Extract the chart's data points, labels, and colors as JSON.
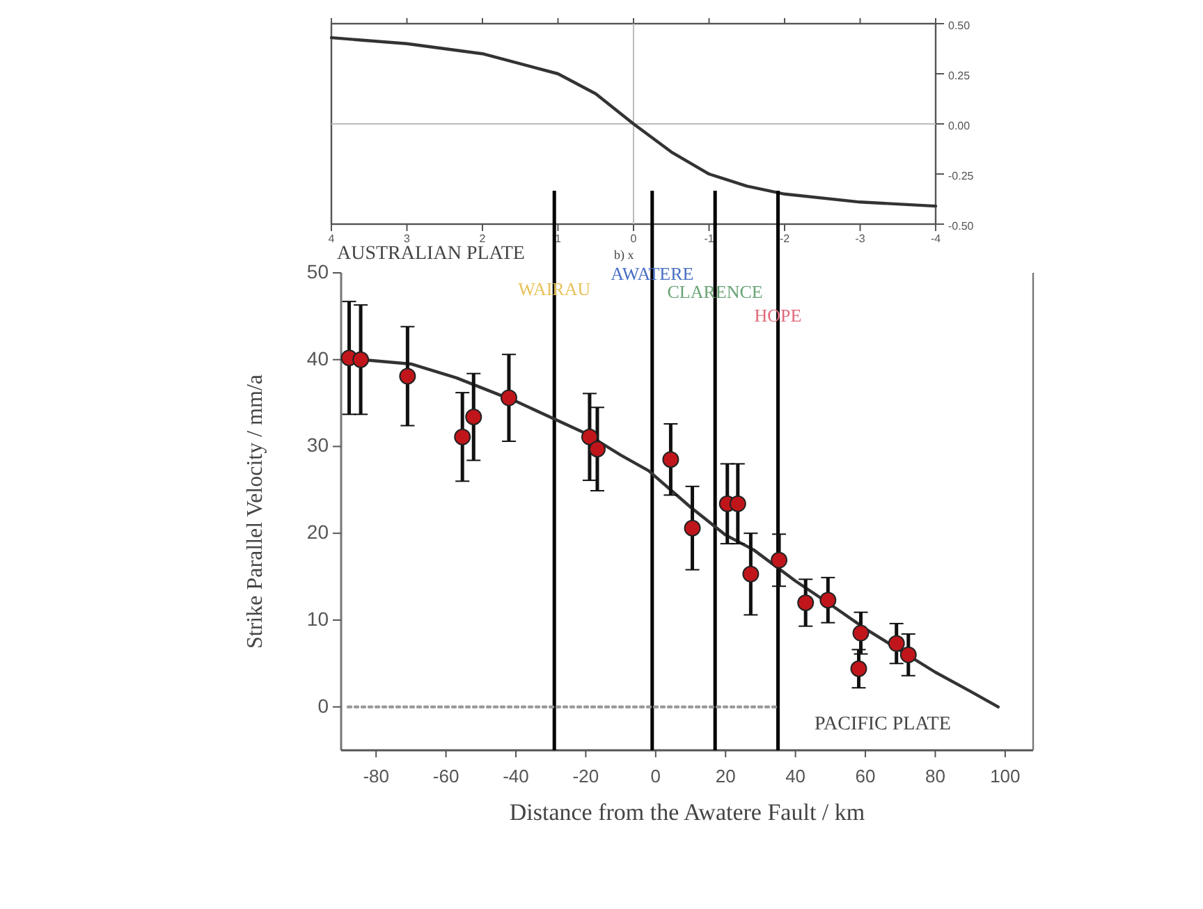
{
  "chart_data": [
    {
      "type": "line",
      "xlim": [
        4,
        -4
      ],
      "xticks": [
        4,
        3,
        2,
        1,
        0,
        -1,
        -2,
        -3,
        -4
      ],
      "y2lim": [
        -0.5,
        0.5
      ],
      "y2ticks": [
        {
          "value": 0.5,
          "label": "0.50"
        },
        {
          "value": 0.25,
          "label": "0.25"
        },
        {
          "value": 0,
          "label": "0.00"
        },
        {
          "value": -0.25,
          "label": "-0.25"
        },
        {
          "value": -0.5,
          "label": "-0.50"
        }
      ],
      "ref_lines": [
        {
          "axis": "x",
          "value": 0,
          "color": "#bbbbbb"
        },
        {
          "axis": "y2",
          "value": 0,
          "color": "#bbbbbb"
        }
      ],
      "series": [
        {
          "axis": "y2",
          "color": "#333333",
          "x": [
            4,
            3,
            2,
            1,
            0.5,
            0,
            -0.5,
            -1,
            -1.5,
            -2,
            -3,
            -4
          ],
          "values": [
            0.43,
            0.4,
            0.35,
            0.25,
            0.15,
            0,
            -0.14,
            -0.25,
            -0.31,
            -0.35,
            -0.39,
            -0.41
          ]
        }
      ]
    },
    {
      "type": "scatter",
      "xlabel": "Distance from the Awatere Fault /  km",
      "ylabel": "Strike Parallel Velocity  /  mm/a",
      "xlim": [
        -90,
        108
      ],
      "ylim": [
        -5,
        50
      ],
      "xticks": [
        -80,
        -60,
        -40,
        -20,
        0,
        20,
        40,
        60,
        80,
        100
      ],
      "yticks": [
        0,
        10,
        20,
        30,
        40,
        50
      ],
      "annotations": [
        "AUSTRALIAN PLATE",
        "PACIFIC PLATE",
        "b) x"
      ],
      "ref_lines": [
        {
          "axis": "x",
          "value": -29,
          "label": "WAIRAU",
          "color": "#000000"
        },
        {
          "axis": "x",
          "value": -1,
          "label": "AWATERE",
          "color": "#000000"
        },
        {
          "axis": "x",
          "value": 17,
          "label": "CLARENCE",
          "color": "#000000"
        },
        {
          "axis": "x",
          "value": 35,
          "label": "HOPE",
          "color": "#000000"
        }
      ],
      "series": [
        {
          "type": "line",
          "color": "#999999",
          "line_style": "dotted",
          "x": [
            -88,
            35
          ],
          "values": [
            0,
            0
          ]
        },
        {
          "type": "line",
          "color": "#333333",
          "x": [
            -84,
            -70,
            -57,
            -40,
            -20,
            -10,
            -2,
            10,
            20,
            28,
            40,
            50,
            60,
            70,
            80,
            90,
            98
          ],
          "values": [
            40,
            39.5,
            37.9,
            35.2,
            31.5,
            29,
            27.2,
            23,
            19.8,
            18.1,
            14.5,
            11.8,
            9,
            6.5,
            4,
            1.8,
            0
          ]
        },
        {
          "color": "#c0161b",
          "marker": "circle",
          "x": [
            -87.7,
            -84.4,
            -71,
            -55.3,
            -52.1,
            -42,
            -18.9,
            -16.7,
            4.3,
            10.5,
            20.5,
            23.5,
            27.2,
            35.3,
            42.9,
            49.3,
            58.7,
            58.1,
            68.9,
            72.3
          ],
          "values": [
            40.2,
            40,
            38.1,
            31.1,
            33.4,
            35.6,
            31.1,
            29.7,
            28.5,
            20.6,
            23.4,
            23.4,
            15.3,
            16.9,
            12,
            12.3,
            8.5,
            4.4,
            7.3,
            6
          ],
          "errors": [
            6.5,
            6.3,
            5.7,
            5.1,
            5,
            5,
            5,
            4.8,
            4.1,
            4.8,
            4.6,
            4.6,
            4.7,
            3,
            2.7,
            2.6,
            2.4,
            2.2,
            2.3,
            2.4
          ]
        }
      ]
    }
  ]
}
